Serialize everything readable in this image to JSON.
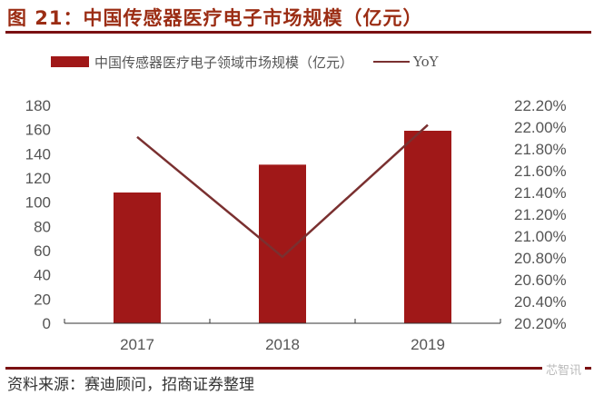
{
  "title": "图 21：中国传感器医疗电子市场规模（亿元）",
  "legend": {
    "bar_label": "中国传感器医疗电子领域市场规模（亿元）",
    "line_label": "YoY"
  },
  "source": "资料来源：赛迪顾问，招商证券整理",
  "watermark": "芯智讯",
  "colors": {
    "bar": "#a01818",
    "line": "#7a3030",
    "title": "#9b2d14",
    "rule": "#7a1012"
  },
  "axes": {
    "left_ticks": [
      "0",
      "20",
      "40",
      "60",
      "80",
      "100",
      "120",
      "140",
      "160",
      "180"
    ],
    "right_ticks": [
      "20.20%",
      "20.40%",
      "20.60%",
      "20.80%",
      "21.00%",
      "21.20%",
      "21.40%",
      "21.60%",
      "21.80%",
      "22.00%",
      "22.20%"
    ],
    "x_ticks": [
      "2017",
      "2018",
      "2019"
    ]
  },
  "chart_data": {
    "type": "bar",
    "title": "图 21：中国传感器医疗电子市场规模（亿元）",
    "categories": [
      "2017",
      "2018",
      "2019"
    ],
    "series": [
      {
        "name": "中国传感器医疗电子领域市场规模（亿元）",
        "type": "bar",
        "axis": "left",
        "values": [
          108,
          131,
          159
        ]
      },
      {
        "name": "YoY",
        "type": "line",
        "axis": "right",
        "values": [
          21.91,
          20.81,
          22.02
        ],
        "unit": "%"
      }
    ],
    "xlabel": "",
    "ylabel": "",
    "ylim": [
      0,
      180
    ],
    "y2lim": [
      20.2,
      22.2
    ],
    "grid": false,
    "legend_position": "top"
  }
}
